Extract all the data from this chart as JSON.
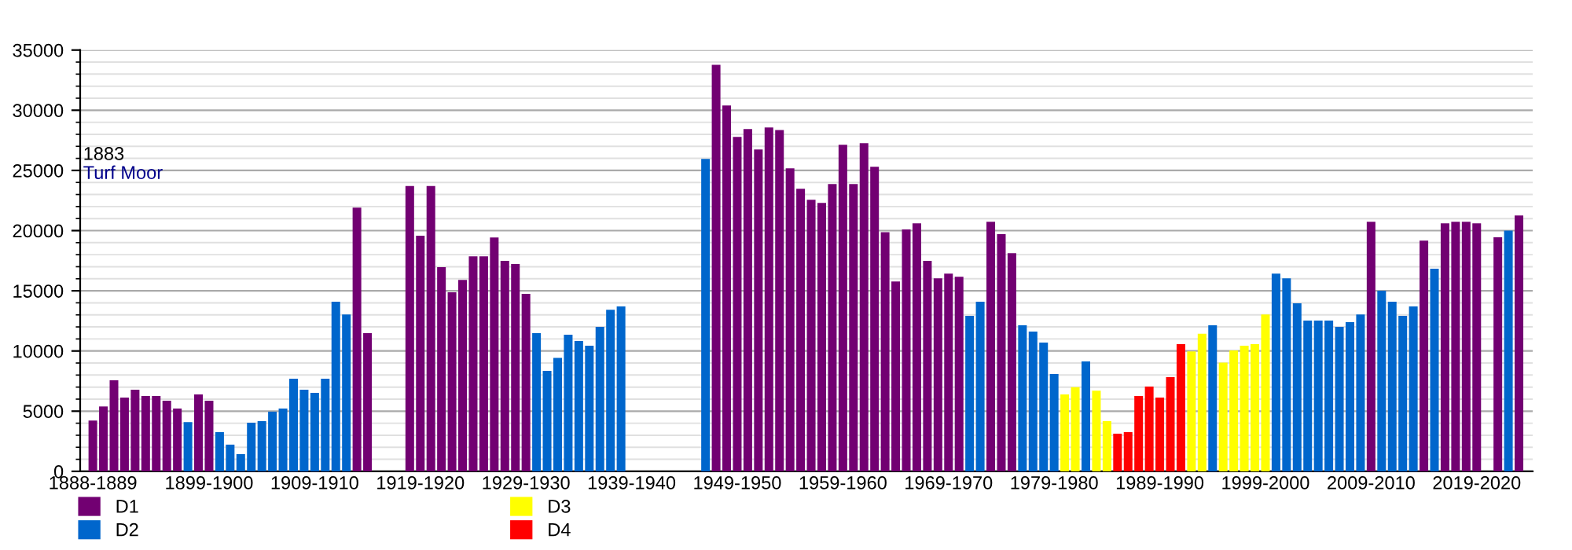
{
  "chart_data": {
    "type": "bar",
    "annotations": [
      "1883",
      "Turf Moor"
    ],
    "categories": [
      "1888-1889",
      null,
      null,
      null,
      null,
      null,
      null,
      null,
      null,
      null,
      null,
      "1899-1900",
      null,
      null,
      null,
      null,
      null,
      null,
      null,
      null,
      null,
      "1909-1910",
      null,
      null,
      null,
      null,
      null,
      null,
      null,
      null,
      null,
      "1919-1920",
      null,
      null,
      null,
      null,
      null,
      null,
      null,
      null,
      null,
      "1929-1930",
      null,
      null,
      null,
      null,
      null,
      null,
      null,
      null,
      null,
      "1939-1940",
      null,
      null,
      null,
      null,
      null,
      null,
      null,
      null,
      null,
      "1949-1950",
      null,
      null,
      null,
      null,
      null,
      null,
      null,
      null,
      null,
      "1959-1960",
      null,
      null,
      null,
      null,
      null,
      null,
      null,
      null,
      null,
      "1969-1970",
      null,
      null,
      null,
      null,
      null,
      null,
      null,
      null,
      null,
      "1979-1980",
      null,
      null,
      null,
      null,
      null,
      null,
      null,
      null,
      null,
      "1989-1990",
      null,
      null,
      null,
      null,
      null,
      null,
      null,
      null,
      null,
      "1999-2000",
      null,
      null,
      null,
      null,
      null,
      null,
      null,
      null,
      null,
      "2009-2010",
      null,
      null,
      null,
      null,
      null,
      null,
      null,
      null,
      null,
      "2019-2020",
      null,
      null,
      null,
      null
    ],
    "series": [
      {
        "name": "D1",
        "color": "#720072",
        "values": [
          4220,
          5390,
          7570,
          6130,
          6780,
          6260,
          6260,
          5870,
          5220,
          null,
          6390,
          5870,
          null,
          null,
          null,
          null,
          null,
          null,
          null,
          null,
          null,
          null,
          null,
          null,
          null,
          21910,
          11480,
          null,
          null,
          null,
          23700,
          19570,
          23700,
          16960,
          14870,
          15910,
          17870,
          17870,
          19430,
          17480,
          17220,
          14740,
          null,
          null,
          null,
          null,
          null,
          null,
          null,
          null,
          null,
          null,
          null,
          null,
          null,
          null,
          null,
          null,
          null,
          33780,
          30390,
          27780,
          28430,
          26740,
          28570,
          28350,
          25170,
          23480,
          22560,
          22300,
          23870,
          27130,
          23870,
          27260,
          25300,
          19870,
          15780,
          20090,
          20610,
          17480,
          16040,
          16430,
          16170,
          null,
          null,
          20740,
          19700,
          18130,
          null,
          null,
          null,
          null,
          null,
          null,
          null,
          null,
          null,
          null,
          null,
          null,
          null,
          null,
          null,
          null,
          null,
          null,
          null,
          null,
          null,
          null,
          null,
          null,
          null,
          null,
          null,
          null,
          null,
          null,
          null,
          null,
          null,
          20740,
          null,
          null,
          null,
          null,
          19170,
          null,
          20610,
          20740,
          20740,
          20610,
          null,
          19440,
          null,
          21260
        ]
      },
      {
        "name": "D2",
        "color": "#0066cc",
        "values": [
          null,
          null,
          null,
          null,
          null,
          null,
          null,
          null,
          null,
          4090,
          null,
          null,
          3260,
          2220,
          1430,
          4040,
          4170,
          4960,
          5220,
          7700,
          6780,
          6520,
          7700,
          14090,
          13040,
          null,
          null,
          null,
          null,
          null,
          null,
          null,
          null,
          null,
          null,
          null,
          null,
          null,
          null,
          null,
          null,
          null,
          11480,
          8350,
          9430,
          11350,
          10830,
          10430,
          12000,
          13430,
          13700,
          null,
          null,
          null,
          null,
          null,
          null,
          null,
          25960,
          null,
          null,
          null,
          null,
          null,
          null,
          null,
          null,
          null,
          null,
          null,
          null,
          null,
          null,
          null,
          null,
          null,
          null,
          null,
          null,
          null,
          null,
          null,
          null,
          12910,
          14090,
          null,
          null,
          null,
          12130,
          11610,
          10700,
          8090,
          null,
          null,
          9130,
          null,
          null,
          null,
          null,
          null,
          null,
          null,
          null,
          null,
          null,
          null,
          12130,
          null,
          null,
          null,
          null,
          null,
          16430,
          16040,
          13960,
          12520,
          12520,
          12520,
          12000,
          12390,
          13040,
          null,
          15000,
          14090,
          12910,
          13700,
          null,
          16830,
          null,
          null,
          null,
          null,
          null,
          null,
          20000,
          null
        ]
      },
      {
        "name": "D3",
        "color": "#ffff00",
        "values": [
          null,
          null,
          null,
          null,
          null,
          null,
          null,
          null,
          null,
          null,
          null,
          null,
          null,
          null,
          null,
          null,
          null,
          null,
          null,
          null,
          null,
          null,
          null,
          null,
          null,
          null,
          null,
          null,
          null,
          null,
          null,
          null,
          null,
          null,
          null,
          null,
          null,
          null,
          null,
          null,
          null,
          null,
          null,
          null,
          null,
          null,
          null,
          null,
          null,
          null,
          null,
          null,
          null,
          null,
          null,
          null,
          null,
          null,
          null,
          null,
          null,
          null,
          null,
          null,
          null,
          null,
          null,
          null,
          null,
          null,
          null,
          null,
          null,
          null,
          null,
          null,
          null,
          null,
          null,
          null,
          null,
          null,
          null,
          null,
          null,
          null,
          null,
          null,
          null,
          null,
          null,
          null,
          6390,
          7000,
          null,
          6700,
          4170,
          null,
          null,
          null,
          null,
          null,
          null,
          null,
          9960,
          11440,
          null,
          9040,
          10040,
          10430,
          10570,
          13040,
          null,
          null,
          null,
          null,
          null,
          null,
          null,
          null,
          null,
          null,
          null,
          null,
          null,
          null,
          null,
          null,
          null,
          null,
          null,
          null,
          null,
          null,
          null,
          null
        ]
      },
      {
        "name": "D4",
        "color": "#ff0000",
        "values": [
          null,
          null,
          null,
          null,
          null,
          null,
          null,
          null,
          null,
          null,
          null,
          null,
          null,
          null,
          null,
          null,
          null,
          null,
          null,
          null,
          null,
          null,
          null,
          null,
          null,
          null,
          null,
          null,
          null,
          null,
          null,
          null,
          null,
          null,
          null,
          null,
          null,
          null,
          null,
          null,
          null,
          null,
          null,
          null,
          null,
          null,
          null,
          null,
          null,
          null,
          null,
          null,
          null,
          null,
          null,
          null,
          null,
          null,
          null,
          null,
          null,
          null,
          null,
          null,
          null,
          null,
          null,
          null,
          null,
          null,
          null,
          null,
          null,
          null,
          null,
          null,
          null,
          null,
          null,
          null,
          null,
          null,
          null,
          null,
          null,
          null,
          null,
          null,
          null,
          null,
          null,
          null,
          null,
          null,
          null,
          null,
          null,
          3130,
          3260,
          6260,
          7040,
          6130,
          7830,
          10570,
          null,
          null,
          null,
          null,
          null,
          null,
          null,
          null,
          null,
          null,
          null,
          null,
          null,
          null,
          null,
          null,
          null,
          null,
          null,
          null,
          null,
          null,
          null,
          null,
          null,
          null,
          null,
          null,
          null,
          null,
          null,
          null
        ]
      }
    ],
    "ylim": [
      0,
      35000
    ],
    "yticks": [
      0,
      5000,
      10000,
      15000,
      20000,
      25000,
      30000,
      35000
    ],
    "grid": "y",
    "legend": "bottom"
  }
}
